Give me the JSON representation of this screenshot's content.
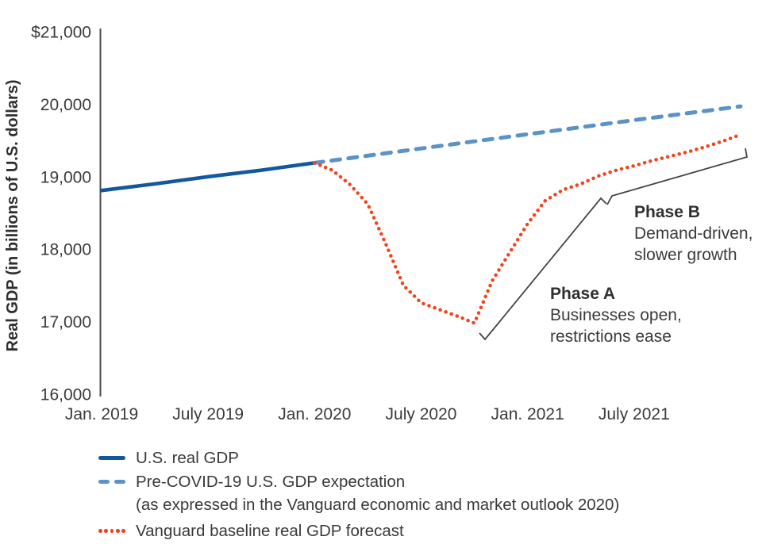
{
  "colors": {
    "actual_line": "#12589f",
    "expectation_line": "#5b92c7",
    "forecast_line": "#f4431c",
    "axis": "#4a4a4a",
    "text": "#3a3a3a",
    "annotation_line": "#444444"
  },
  "chart_data": {
    "type": "line",
    "title": "",
    "ylabel": "Real GDP (in billions of U.S. dollars)",
    "xlabel": "",
    "ylim": [
      16000,
      21000
    ],
    "xlim": [
      2019.0,
      2022.0
    ],
    "grid": false,
    "legend_position": "bottom-left",
    "y_ticks": [
      {
        "label": "$21,000",
        "value": 21000
      },
      {
        "label": "20,000",
        "value": 20000
      },
      {
        "label": "19,000",
        "value": 19000
      },
      {
        "label": "18,000",
        "value": 18000
      },
      {
        "label": "17,000",
        "value": 17000
      },
      {
        "label": "16,000",
        "value": 16000
      }
    ],
    "x_ticks": [
      {
        "label": "Jan. 2019",
        "value": 2019.0
      },
      {
        "label": "July 2019",
        "value": 2019.5
      },
      {
        "label": "Jan. 2020",
        "value": 2020.0
      },
      {
        "label": "July 2020",
        "value": 2020.5
      },
      {
        "label": "Jan. 2021",
        "value": 2021.0
      },
      {
        "label": "July 2021",
        "value": 2021.5
      }
    ],
    "series": [
      {
        "name": "U.S. real GDP",
        "style": "solid",
        "color": "#12589f",
        "x": [
          2019.0,
          2019.25,
          2019.5,
          2019.75,
          2020.0
        ],
        "values": [
          18810,
          18900,
          19000,
          19090,
          19190
        ]
      },
      {
        "name": "Pre-COVID-19 U.S. GDP expectation",
        "style": "dashed",
        "color": "#5b92c7",
        "x": [
          2020.0,
          2020.5,
          2021.0,
          2021.5,
          2022.0
        ],
        "values": [
          19190,
          19390,
          19585,
          19780,
          19970
        ]
      },
      {
        "name": "Vanguard baseline real GDP forecast",
        "style": "dotted",
        "color": "#f4431c",
        "x": [
          2020.0,
          2020.083,
          2020.167,
          2020.25,
          2020.333,
          2020.417,
          2020.5,
          2020.583,
          2020.667,
          2020.75,
          2020.833,
          2020.917,
          2021.0,
          2021.083,
          2021.167,
          2021.25,
          2021.333,
          2021.417,
          2021.5,
          2021.583,
          2021.667,
          2021.75,
          2021.833,
          2021.917,
          2022.0
        ],
        "values": [
          19190,
          19090,
          18890,
          18620,
          18080,
          17500,
          17260,
          17170,
          17080,
          16980,
          17560,
          17960,
          18350,
          18670,
          18820,
          18900,
          19010,
          19090,
          19150,
          19220,
          19280,
          19340,
          19410,
          19490,
          19580
        ]
      }
    ],
    "annotations": {
      "phase_a": {
        "title": "Phase A",
        "line1": "Businesses open,",
        "line2": "restrictions ease"
      },
      "phase_b": {
        "title": "Phase B",
        "line1": "Demand-driven,",
        "line2": "slower growth"
      }
    }
  },
  "legend": {
    "items": [
      {
        "swatch": "solid",
        "color": "#12589f",
        "label": "U.S. real GDP"
      },
      {
        "swatch": "dashed",
        "color": "#5b92c7",
        "label": "Pre-COVID-19 U.S. GDP expectation",
        "sublabel": "(as expressed in the Vanguard economic and market outlook 2020)"
      },
      {
        "swatch": "dotted",
        "color": "#f4431c",
        "label": "Vanguard baseline real GDP forecast"
      }
    ]
  }
}
